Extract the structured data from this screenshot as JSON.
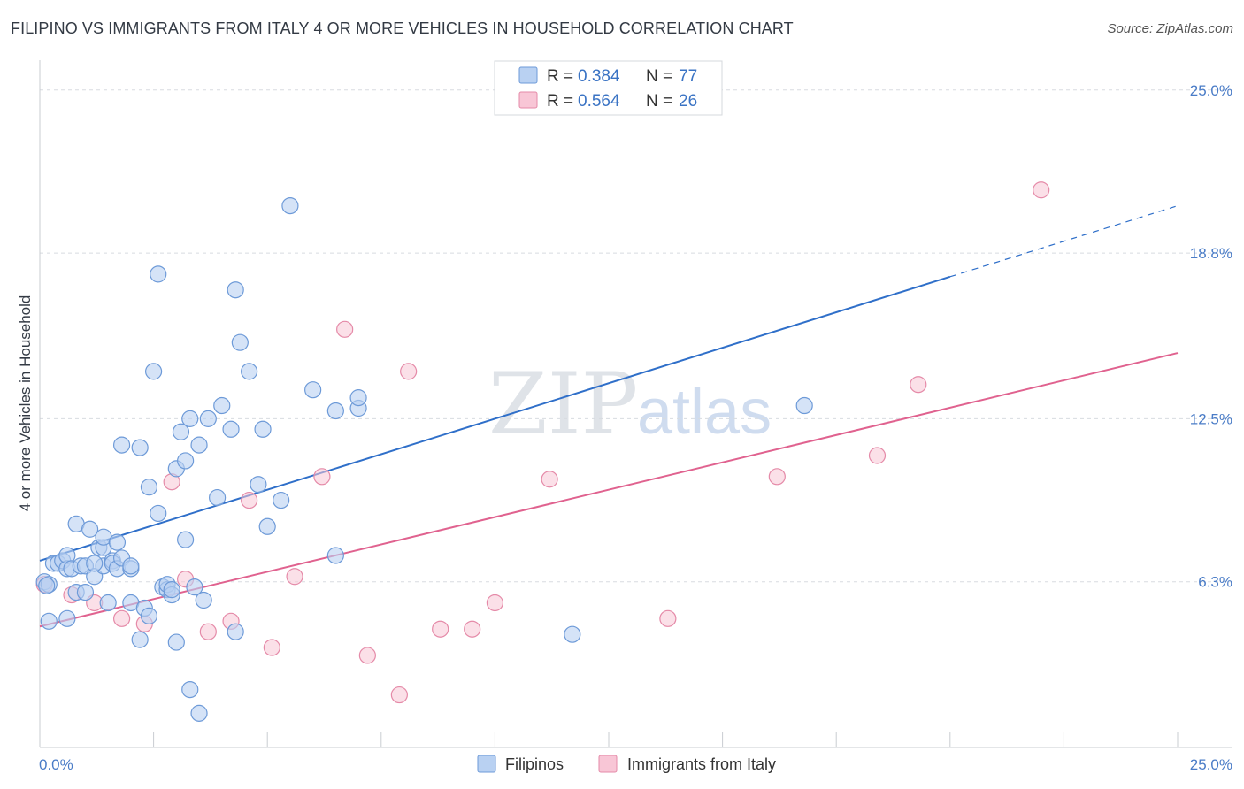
{
  "header": {
    "title": "FILIPINO VS IMMIGRANTS FROM ITALY 4 OR MORE VEHICLES IN HOUSEHOLD CORRELATION CHART",
    "source": "Source: ZipAtlas.com"
  },
  "watermark": {
    "zip": "ZIP",
    "atlas": "atlas"
  },
  "colors": {
    "filipinos_fill": "#b9d1f2",
    "filipinos_stroke": "#6d9ad8",
    "filipinos_line": "#2f6fc9",
    "italy_fill": "#f8c6d6",
    "italy_stroke": "#e58aa8",
    "italy_line": "#e0628f",
    "grid": "#d8dbe0",
    "tick_text": "#4a7cc7"
  },
  "chart_data": {
    "type": "scatter",
    "title": "FILIPINO VS IMMIGRANTS FROM ITALY 4 OR MORE VEHICLES IN HOUSEHOLD CORRELATION CHART",
    "xlabel": "",
    "ylabel": "4 or more Vehicles in Household",
    "xlim": [
      0,
      25
    ],
    "ylim": [
      0,
      25.8
    ],
    "x_tick_labels": [
      "0.0%",
      "25.0%"
    ],
    "y_ticks": [
      6.3,
      12.5,
      18.8,
      25.0
    ],
    "y_tick_labels": [
      "6.3%",
      "12.5%",
      "18.8%",
      "25.0%"
    ],
    "grid": true,
    "legend": {
      "position": "top-center",
      "entries": [
        {
          "r_label": "R =",
          "r_value": "0.384",
          "n_label": "N =",
          "n_value": "77"
        },
        {
          "r_label": "R =",
          "r_value": "0.564",
          "n_label": "N =",
          "n_value": "26"
        }
      ]
    },
    "bottom_legend": [
      "Filipinos",
      "Immigrants from Italy"
    ],
    "series": [
      {
        "name": "Filipinos",
        "trend": {
          "x0": 0,
          "y0": 7.1,
          "x1": 20,
          "y1": 17.9,
          "dash_to_x": 25,
          "dash_to_y": 20.6
        },
        "points": [
          [
            0.1,
            6.3
          ],
          [
            0.2,
            6.2
          ],
          [
            0.2,
            4.8
          ],
          [
            0.3,
            7.0
          ],
          [
            0.4,
            7.0
          ],
          [
            0.5,
            7.1
          ],
          [
            0.6,
            4.9
          ],
          [
            0.6,
            6.8
          ],
          [
            0.6,
            7.3
          ],
          [
            0.7,
            6.8
          ],
          [
            0.8,
            5.9
          ],
          [
            0.8,
            8.5
          ],
          [
            0.9,
            6.9
          ],
          [
            1.0,
            6.9
          ],
          [
            1.0,
            5.9
          ],
          [
            1.1,
            8.3
          ],
          [
            1.2,
            6.5
          ],
          [
            1.3,
            7.6
          ],
          [
            1.4,
            7.6
          ],
          [
            1.4,
            8.0
          ],
          [
            1.4,
            6.9
          ],
          [
            1.5,
            5.5
          ],
          [
            1.6,
            7.1
          ],
          [
            1.6,
            7.0
          ],
          [
            1.7,
            6.8
          ],
          [
            1.7,
            7.8
          ],
          [
            1.8,
            11.5
          ],
          [
            1.8,
            7.2
          ],
          [
            2.0,
            6.8
          ],
          [
            2.0,
            6.9
          ],
          [
            2.0,
            5.5
          ],
          [
            2.2,
            4.1
          ],
          [
            2.2,
            11.4
          ],
          [
            2.3,
            5.3
          ],
          [
            2.4,
            5.0
          ],
          [
            2.4,
            9.9
          ],
          [
            2.5,
            14.3
          ],
          [
            2.6,
            8.9
          ],
          [
            2.6,
            18.0
          ],
          [
            2.7,
            6.1
          ],
          [
            2.8,
            6.0
          ],
          [
            2.8,
            6.2
          ],
          [
            2.9,
            5.8
          ],
          [
            3.0,
            4.0
          ],
          [
            3.0,
            10.6
          ],
          [
            3.1,
            12.0
          ],
          [
            3.2,
            10.9
          ],
          [
            3.2,
            7.9
          ],
          [
            3.3,
            2.2
          ],
          [
            3.3,
            12.5
          ],
          [
            3.4,
            6.1
          ],
          [
            3.5,
            1.3
          ],
          [
            3.5,
            11.5
          ],
          [
            3.6,
            5.6
          ],
          [
            3.7,
            12.5
          ],
          [
            3.9,
            9.5
          ],
          [
            4.0,
            13.0
          ],
          [
            4.2,
            12.1
          ],
          [
            4.3,
            4.4
          ],
          [
            4.3,
            17.4
          ],
          [
            4.4,
            15.4
          ],
          [
            4.6,
            14.3
          ],
          [
            4.8,
            10.0
          ],
          [
            4.9,
            12.1
          ],
          [
            5.0,
            8.4
          ],
          [
            5.3,
            9.4
          ],
          [
            5.5,
            20.6
          ],
          [
            6.0,
            13.6
          ],
          [
            6.5,
            12.8
          ],
          [
            6.5,
            7.3
          ],
          [
            7.0,
            12.9
          ],
          [
            7.0,
            13.3
          ],
          [
            11.7,
            4.3
          ],
          [
            16.8,
            13.0
          ],
          [
            0.15,
            6.15
          ],
          [
            1.2,
            7.0
          ],
          [
            2.9,
            6.0
          ]
        ]
      },
      {
        "name": "Immigrants from Italy",
        "trend": {
          "x0": 0,
          "y0": 4.6,
          "x1": 25,
          "y1": 15.0
        },
        "points": [
          [
            0.1,
            6.2
          ],
          [
            0.7,
            5.8
          ],
          [
            1.2,
            5.5
          ],
          [
            1.8,
            4.9
          ],
          [
            2.3,
            4.7
          ],
          [
            2.9,
            10.1
          ],
          [
            3.2,
            6.4
          ],
          [
            3.7,
            4.4
          ],
          [
            4.2,
            4.8
          ],
          [
            4.6,
            9.4
          ],
          [
            5.1,
            3.8
          ],
          [
            5.6,
            6.5
          ],
          [
            6.2,
            10.3
          ],
          [
            6.7,
            15.9
          ],
          [
            7.2,
            3.5
          ],
          [
            7.9,
            2.0
          ],
          [
            8.1,
            14.3
          ],
          [
            8.8,
            4.5
          ],
          [
            9.5,
            4.5
          ],
          [
            10.0,
            5.5
          ],
          [
            11.2,
            10.2
          ],
          [
            13.8,
            4.9
          ],
          [
            16.2,
            10.3
          ],
          [
            18.4,
            11.1
          ],
          [
            19.3,
            13.8
          ],
          [
            22.0,
            21.2
          ]
        ]
      }
    ]
  }
}
